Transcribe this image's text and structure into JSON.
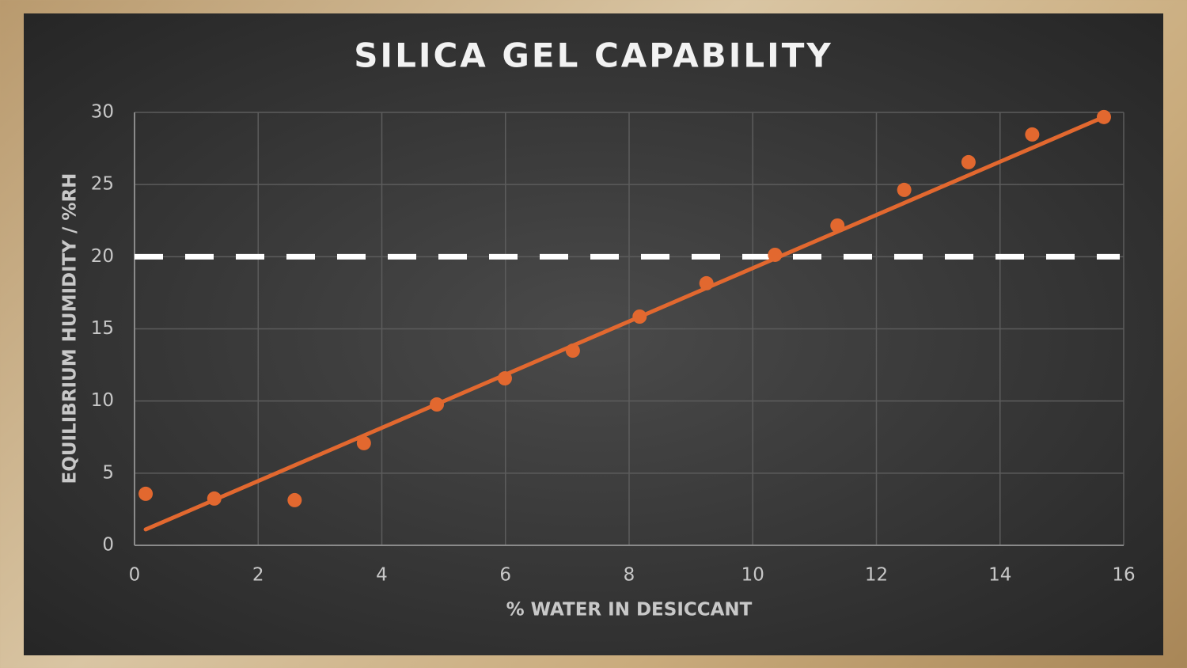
{
  "chart_data": {
    "type": "scatter",
    "title": "SILICA GEL CAPABILITY",
    "x_label": "% WATER IN DESICCANT",
    "y_label": "EQUILIBRIUM HUMIDITY / %RH",
    "xlim": [
      0,
      16
    ],
    "xticks": [
      0,
      2,
      4,
      6,
      8,
      10,
      12,
      14,
      16
    ],
    "ylim": [
      0,
      30
    ],
    "yticks": [
      0,
      5,
      10,
      15,
      20,
      25,
      30
    ],
    "grid": true,
    "series": [
      {
        "color": "#e2682f",
        "x": [
          0.18,
          1.29,
          2.59,
          3.71,
          4.89,
          5.99,
          7.09,
          8.17,
          9.25,
          10.36,
          11.37,
          12.45,
          13.49,
          14.52,
          15.68
        ],
        "values": [
          3.57,
          3.24,
          3.13,
          7.08,
          9.76,
          11.57,
          13.49,
          15.85,
          18.16,
          20.13,
          22.16,
          24.63,
          26.55,
          28.47,
          29.68
        ]
      }
    ],
    "trendline": {
      "color": "#e2682f",
      "x": [
        0.18,
        15.68
      ],
      "values": [
        1.1,
        29.68
      ]
    },
    "threshold": {
      "value": 20,
      "color": "#ffffff",
      "style": "dashed"
    }
  }
}
